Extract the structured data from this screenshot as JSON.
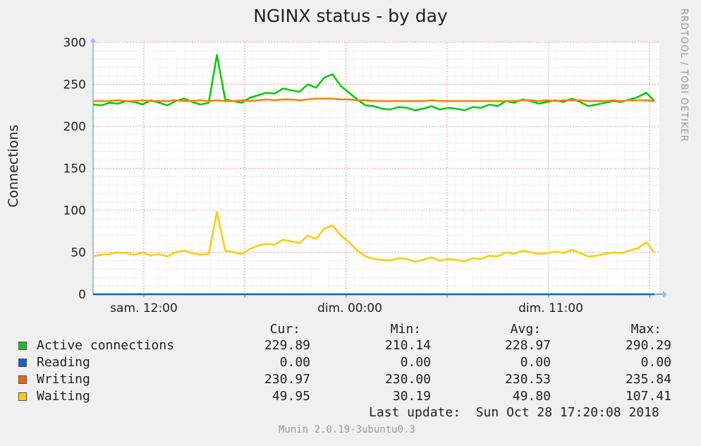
{
  "chart_data": {
    "type": "line",
    "title": "NGINX status - by day",
    "ylabel": "Connections",
    "xlabel": "",
    "ylim": [
      0,
      300
    ],
    "yticks": [
      0,
      50,
      100,
      150,
      200,
      250,
      300
    ],
    "xtick_labels": [
      "sam. 12:00",
      "dim. 00:00",
      "dim. 11:00"
    ],
    "grid": true,
    "series": [
      {
        "name": "Active connections",
        "color": "#00cc00",
        "values": [
          226,
          225,
          228,
          227,
          230,
          229,
          226,
          231,
          228,
          225,
          230,
          233,
          229,
          226,
          228,
          285,
          232,
          230,
          228,
          234,
          237,
          240,
          239,
          245,
          243,
          241,
          250,
          246,
          258,
          262,
          248,
          240,
          232,
          225,
          224,
          221,
          220,
          223,
          222,
          219,
          221,
          224,
          220,
          222,
          221,
          219,
          223,
          222,
          226,
          224,
          230,
          228,
          232,
          230,
          227,
          229,
          231,
          229,
          233,
          229,
          224,
          226,
          228,
          230,
          229,
          232,
          235,
          240,
          230
        ]
      },
      {
        "name": "Reading",
        "color": "#0066b3",
        "values": [
          0,
          0,
          0,
          0,
          0,
          0,
          0,
          0,
          0,
          0,
          0,
          0,
          0,
          0,
          0,
          0,
          0,
          0,
          0,
          0,
          0,
          0,
          0,
          0,
          0,
          0,
          0,
          0,
          0,
          0,
          0,
          0,
          0,
          0,
          0,
          0,
          0,
          0,
          0,
          0,
          0,
          0,
          0,
          0,
          0,
          0,
          0,
          0,
          0,
          0,
          0,
          0,
          0,
          0,
          0,
          0,
          0,
          0,
          0,
          0,
          0,
          0,
          0,
          0,
          0,
          0,
          0,
          0,
          0
        ]
      },
      {
        "name": "Writing",
        "color": "#ff8000",
        "values": [
          230,
          230,
          230,
          231,
          230,
          230,
          231,
          230,
          230,
          230,
          231,
          230,
          230,
          231,
          230,
          231,
          230,
          230,
          231,
          230,
          231,
          232,
          231,
          232,
          232,
          231,
          232,
          233,
          233,
          233,
          232,
          232,
          231,
          231,
          230,
          230,
          230,
          230,
          230,
          230,
          230,
          231,
          230,
          230,
          230,
          230,
          230,
          230,
          230,
          230,
          230,
          230,
          231,
          231,
          230,
          231,
          230,
          231,
          231,
          231,
          230,
          230,
          230,
          231,
          230,
          231,
          231,
          231,
          230
        ]
      },
      {
        "name": "Waiting",
        "color": "#ffcc00",
        "values": [
          45,
          47,
          48,
          50,
          49,
          47,
          50,
          46,
          48,
          45,
          50,
          52,
          49,
          47,
          48,
          98,
          52,
          50,
          48,
          54,
          58,
          60,
          59,
          65,
          63,
          61,
          70,
          66,
          78,
          82,
          70,
          62,
          52,
          45,
          42,
          41,
          40,
          43,
          42,
          39,
          41,
          44,
          40,
          42,
          41,
          39,
          43,
          42,
          46,
          45,
          50,
          48,
          52,
          50,
          48,
          49,
          51,
          49,
          53,
          49,
          45,
          46,
          48,
          50,
          49,
          52,
          55,
          62,
          50
        ]
      }
    ]
  },
  "title": "NGINX status - by day",
  "side_credit": "RRDTOOL / TOBI OETIKER",
  "ylabel": "Connections",
  "legend": {
    "headers": {
      "cur": "Cur:",
      "min": "Min:",
      "avg": "Avg:",
      "max": "Max:"
    },
    "rows": [
      {
        "label": "Active connections",
        "color": "#22bb22",
        "cur": "229.89",
        "min": "210.14",
        "avg": "228.97",
        "max": "290.29"
      },
      {
        "label": "Reading",
        "color": "#1166bb",
        "cur": "0.00",
        "min": "0.00",
        "avg": "0.00",
        "max": "0.00"
      },
      {
        "label": "Writing",
        "color": "#ee6611",
        "cur": "230.97",
        "min": "230.00",
        "avg": "230.53",
        "max": "235.84"
      },
      {
        "label": "Waiting",
        "color": "#ffcc00",
        "cur": "49.95",
        "min": "30.19",
        "avg": "49.80",
        "max": "107.41"
      }
    ]
  },
  "last_update": "Last update:  Sun Oct 28 17:20:08 2018",
  "version": "Munin 2.0.19-3ubuntu0.3"
}
